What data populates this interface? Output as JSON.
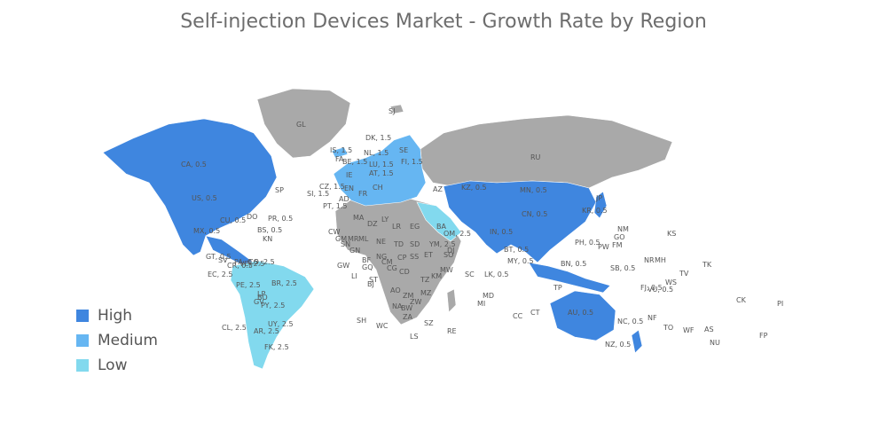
{
  "title": "Self-injection Devices Market - Growth Rate by Region",
  "colors": {
    "high": "#3f86df",
    "medium": "#66b6f2",
    "low": "#82d9ee",
    "none": "#a9a9a9"
  },
  "legend": [
    {
      "key": "high",
      "label": "High"
    },
    {
      "key": "medium",
      "label": "Medium"
    },
    {
      "key": "low",
      "label": "Low"
    }
  ],
  "region_labels": [
    "GL",
    "SJ",
    "IS, 1.5",
    "DK, 1.5",
    "NL, 1.5",
    "BE, 1.5",
    "LU, 1.5",
    "FA",
    "SE",
    "FI, 1.5",
    "IE",
    "AT, 1.5",
    "CZ, 1.5",
    "SI, 1.5",
    "AD",
    "PT, 1.5",
    "EN",
    "FR",
    "CH",
    "RU",
    "KZ, 0.5",
    "MN, 0.5",
    "CN, 0.5",
    "JP",
    "KR, 0.5",
    "NM",
    "GO",
    "KS",
    "IN, 0.5",
    "BT, 0.5",
    "MY, 0.5",
    "BN, 0.5",
    "PH, 0.5",
    "PW",
    "FM",
    "NR",
    "MH",
    "TV",
    "TK",
    "SB, 0.5",
    "WS",
    "FJ, 0.5",
    "VU, 0.5",
    "CK",
    "PI",
    "TP",
    "AU, 0.5",
    "NC, 0.5",
    "NF",
    "TO",
    "WF",
    "AS",
    "NU",
    "FP",
    "NZ, 0.5",
    "CC",
    "CT",
    "LK, 0.5",
    "SC",
    "MD",
    "MI",
    "RE",
    "LS",
    "SZ",
    "ZA",
    "WC",
    "SH",
    "NA",
    "BW",
    "ZW",
    "ZM",
    "MZ",
    "AO",
    "CD",
    "CG",
    "TZ",
    "KM",
    "MW",
    "CM",
    "CP",
    "ET",
    "SS",
    "SD",
    "TD",
    "NE",
    "ML",
    "DZ",
    "MA",
    "LY",
    "EG",
    "LR",
    "SN",
    "GN",
    "GM",
    "MR",
    "CW",
    "GW",
    "GQ",
    "ST",
    "LI",
    "BJ",
    "BF",
    "NG",
    "SO",
    "DJ",
    "YM, 2.5",
    "OM, 2.5",
    "BA",
    "AZ",
    "CA, 0.5",
    "US, 0.5",
    "SP",
    "MX, 0.5",
    "CU, 0.5",
    "DO",
    "PR, 0.5",
    "BS, 0.5",
    "KN",
    "GT, 0.5",
    "SV",
    "CR, 0.5",
    "PA, 0.5",
    "CO, 2.5",
    "EC, 2.5",
    "PE, 2.5",
    "BR, 2.5",
    "BO",
    "PY, 2.5",
    "UY, 2.5",
    "AR, 2.5",
    "CL, 2.5",
    "FK, 2.5",
    "LP",
    "GV",
    "VE, 2.5"
  ]
}
